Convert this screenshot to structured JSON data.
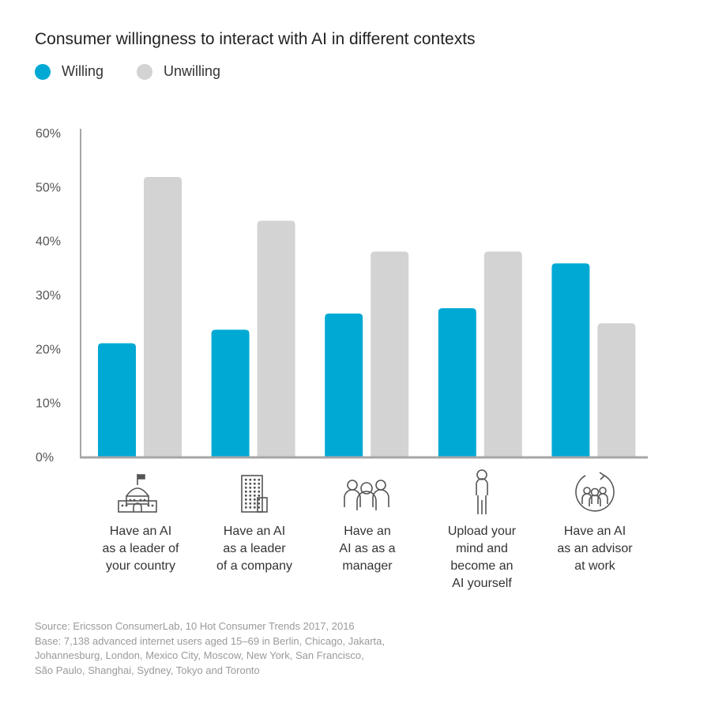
{
  "colors": {
    "willing": "#00a9d4",
    "unwilling": "#d3d3d3",
    "axis": "#a6a6a6"
  },
  "chart_data": {
    "type": "bar",
    "title": "Consumer willingness to interact with AI in different contexts",
    "categories": [
      "Have an AI as a leader of your country",
      "Have an AI as a leader of a company",
      "Have an AI as as a manager",
      "Upload your mind and become an AI yourself",
      "Have an AI as an advisor at work"
    ],
    "category_lines": [
      [
        "Have an AI",
        "as a leader of",
        "your country"
      ],
      [
        "Have an AI",
        "as a leader",
        "of a company"
      ],
      [
        "Have an",
        "AI as as a",
        "manager"
      ],
      [
        "Upload your",
        "mind and",
        "become an",
        "AI yourself"
      ],
      [
        "Have an AI",
        "as an advisor",
        "at work"
      ]
    ],
    "category_icons": [
      "capitol-building-icon",
      "office-building-icon",
      "team-group-icon",
      "person-icon",
      "group-cycle-icon"
    ],
    "series": [
      {
        "name": "Willing",
        "values": [
          21,
          23.5,
          26.5,
          27.5,
          35.8
        ]
      },
      {
        "name": "Unwilling",
        "values": [
          51.8,
          43.7,
          38,
          38,
          24.7
        ]
      }
    ],
    "ylim": [
      0,
      60
    ],
    "yticks": [
      "0%",
      "10%",
      "20%",
      "30%",
      "40%",
      "50%",
      "60%"
    ],
    "ytick_values": [
      0,
      10,
      20,
      30,
      40,
      50,
      60
    ],
    "xlabel": "",
    "ylabel": "",
    "grid": false,
    "legend": "top-left"
  },
  "source": {
    "lines": [
      "Source: Ericsson ConsumerLab, 10 Hot Consumer Trends 2017, 2016",
      "Base: 7,138 advanced internet users aged 15–69 in Berlin, Chicago, Jakarta,",
      "Johannesburg, London, Mexico City, Moscow, New York, San Francisco,",
      "São Paulo, Shanghai, Sydney, Tokyo and Toronto"
    ]
  }
}
